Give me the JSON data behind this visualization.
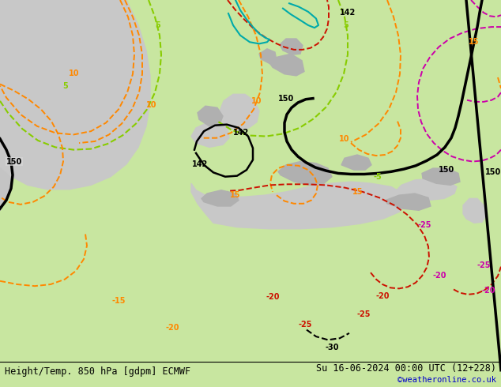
{
  "title_left": "Height/Temp. 850 hPa [gdpm] ECMWF",
  "title_right": "Su 16-06-2024 00:00 UTC (12+228)",
  "credit": "©weatheronline.co.uk",
  "bg_color": "#d8d8d8",
  "land_color_light": "#c8e6a0",
  "water_color": "#d0d0d0",
  "mountain_color": "#b8b8b8",
  "figsize": [
    6.34,
    4.9
  ],
  "dpi": 100,
  "bottom_text_color": "#000000",
  "credit_color": "#0000cc",
  "col_black": "#000000",
  "col_orange": "#ff8800",
  "col_green": "#88cc00",
  "col_teal": "#00aaaa",
  "col_red": "#cc1100",
  "col_magenta": "#cc00aa"
}
